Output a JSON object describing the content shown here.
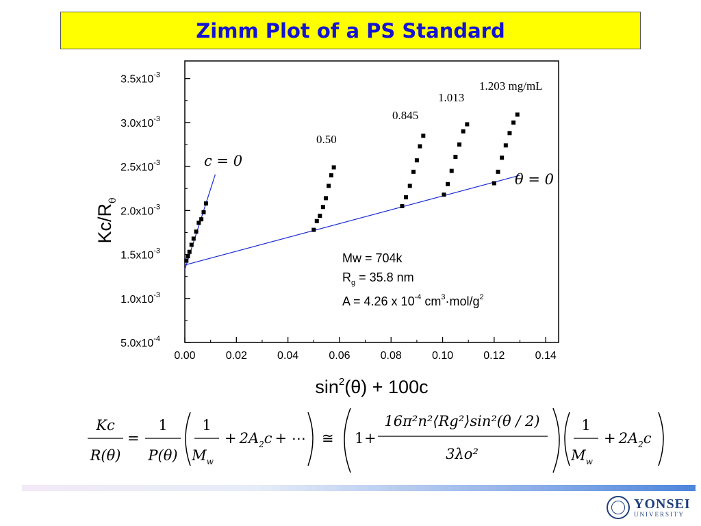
{
  "slide": {
    "title": "Zimm Plot of a PS Standard"
  },
  "chart_data": {
    "type": "scatter",
    "xlabel_main": "sin",
    "xlabel_sup": "2",
    "xlabel_theta": "(θ) + 100c",
    "ylabel_main": "Kc/R",
    "ylabel_sub": "θ",
    "xlim": [
      0.0,
      0.145
    ],
    "ylim": [
      0.0005,
      0.0037
    ],
    "x_ticks": [
      0.0,
      0.02,
      0.04,
      0.06,
      0.08,
      0.1,
      0.12,
      0.14
    ],
    "x_tick_labels": [
      "0.00",
      "0.02",
      "0.04",
      "0.06",
      "0.08",
      "0.10",
      "0.12",
      "0.14"
    ],
    "y_ticks": [
      0.0005,
      0.001,
      0.0015,
      0.002,
      0.0025,
      0.003,
      0.0035
    ],
    "y_tick_mantissa": [
      "5.0x10",
      "1.0x10",
      "1.5x10",
      "2.0x10",
      "2.5x10",
      "3.0x10",
      "3.5x10"
    ],
    "y_tick_exponent": [
      "-4",
      "-3",
      "-3",
      "-3",
      "-3",
      "-3",
      "-3"
    ],
    "grid": false,
    "series": [
      {
        "x": [
          0.0006,
          0.0012,
          0.0018,
          0.0026,
          0.0034,
          0.0044,
          0.0054,
          0.0064,
          0.0073,
          0.0082
        ],
        "y": [
          0.00143,
          0.00148,
          0.00153,
          0.00161,
          0.00168,
          0.00176,
          0.00186,
          0.0019,
          0.00198,
          0.00208
        ]
      },
      {
        "x": [
          0.05,
          0.0512,
          0.0524,
          0.0536,
          0.0547,
          0.0558,
          0.0568,
          0.0578
        ],
        "y": [
          0.00178,
          0.00188,
          0.00194,
          0.00204,
          0.00214,
          0.00228,
          0.0024,
          0.00249
        ]
      },
      {
        "x": [
          0.0843,
          0.0858,
          0.0873,
          0.0887,
          0.09,
          0.0912,
          0.0925
        ],
        "y": [
          0.00205,
          0.00215,
          0.00228,
          0.00244,
          0.00257,
          0.00273,
          0.00285
        ]
      },
      {
        "x": [
          0.1005,
          0.102,
          0.1035,
          0.105,
          0.1065,
          0.108,
          0.1095
        ],
        "y": [
          0.00218,
          0.0023,
          0.00245,
          0.00261,
          0.00275,
          0.0029,
          0.00298
        ]
      },
      {
        "x": [
          0.12,
          0.1215,
          0.123,
          0.1245,
          0.126,
          0.1275,
          0.129
        ],
        "y": [
          0.00231,
          0.00244,
          0.0026,
          0.00274,
          0.00288,
          0.003,
          0.00309
        ]
      }
    ],
    "fit_lines": [
      {
        "name": "θ = 0",
        "x": [
          0.0,
          0.13
        ],
        "y": [
          0.00138,
          0.0024
        ]
      },
      {
        "name": "c = 0",
        "x": [
          0.0,
          0.0118
        ],
        "y": [
          0.00133,
          0.00241
        ]
      }
    ],
    "annotations": {
      "conc_050": "0.50",
      "conc_0845": "0.845",
      "conc_1013": "1.013",
      "conc_1203": "1.203 mg/mL",
      "c_zero": "c = 0",
      "theta_zero": "θ = 0",
      "mw": "Mw = 704k",
      "rg_main": "R",
      "rg_sub": "g",
      "rg_rest": " = 35.8 nm",
      "a_main": "A = 4.26 x 10",
      "a_exp1": "-4",
      "a_mid": " cm",
      "a_exp2": "3",
      "a_mid2": "·mol/g",
      "a_exp3": "2"
    }
  },
  "equation": {
    "lhs_num": "Kc",
    "lhs_den": "R(θ)",
    "eq1": "=",
    "one": "1",
    "p_den": "P(θ)",
    "m": "M",
    "w": "w",
    "plus": "+",
    "twoA": "2A",
    "two_sub": "2",
    "c": "c",
    "dots": "+ ⋯",
    "approx": "≅",
    "big_num": "16π²n²⟨Rg²⟩sin²(θ / 2)",
    "big_den": "3λo²"
  },
  "logo": {
    "main": "YONSEI",
    "sub": "UNIVERSITY"
  },
  "colors": {
    "title_bg": "#ffff00",
    "title_text": "#1414d2",
    "fit_line": "#1a2bd6",
    "marker": "#000000"
  }
}
